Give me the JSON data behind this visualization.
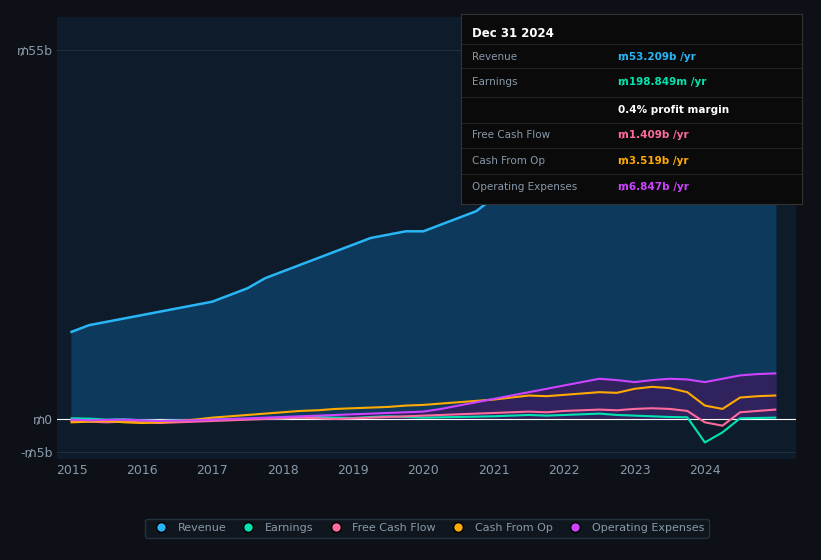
{
  "bg_color": "#0d1117",
  "plot_bg_color": "#0d1b2a",
  "grid_color": "#1e3040",
  "text_color": "#8899aa",
  "years": [
    2015.0,
    2015.25,
    2015.5,
    2015.75,
    2016.0,
    2016.25,
    2016.5,
    2016.75,
    2017.0,
    2017.25,
    2017.5,
    2017.75,
    2018.0,
    2018.25,
    2018.5,
    2018.75,
    2019.0,
    2019.25,
    2019.5,
    2019.75,
    2020.0,
    2020.25,
    2020.5,
    2020.75,
    2021.0,
    2021.25,
    2021.5,
    2021.75,
    2022.0,
    2022.25,
    2022.5,
    2022.75,
    2023.0,
    2023.25,
    2023.5,
    2023.75,
    2024.0,
    2024.25,
    2024.5,
    2024.75,
    2025.0
  ],
  "revenue": [
    13,
    14,
    14.5,
    15,
    15.5,
    16,
    16.5,
    17,
    17.5,
    18.5,
    19.5,
    21,
    22,
    23,
    24,
    25,
    26,
    27,
    27.5,
    28,
    28,
    29,
    30,
    31,
    33,
    34,
    36,
    37,
    39,
    40,
    41,
    42,
    47,
    49,
    51,
    52,
    53,
    53.5,
    53,
    52.5,
    53.2
  ],
  "earnings": [
    0.1,
    0.05,
    -0.1,
    -0.05,
    -0.2,
    -0.3,
    -0.2,
    -0.15,
    -0.1,
    -0.05,
    0.0,
    0.05,
    0.1,
    0.2,
    0.3,
    0.2,
    0.15,
    0.3,
    0.4,
    0.3,
    0.2,
    0.25,
    0.3,
    0.35,
    0.4,
    0.5,
    0.6,
    0.5,
    0.6,
    0.7,
    0.8,
    0.6,
    0.5,
    0.4,
    0.3,
    0.25,
    -3.5,
    -2.0,
    0.1,
    0.15,
    0.2
  ],
  "free_cash_flow": [
    -0.3,
    -0.4,
    -0.5,
    -0.4,
    -0.5,
    -0.6,
    -0.5,
    -0.4,
    -0.3,
    -0.2,
    -0.1,
    0.0,
    0.1,
    0.2,
    0.1,
    0.0,
    0.1,
    0.2,
    0.3,
    0.4,
    0.5,
    0.6,
    0.7,
    0.8,
    0.9,
    1.0,
    1.1,
    1.0,
    1.2,
    1.3,
    1.4,
    1.3,
    1.5,
    1.6,
    1.5,
    1.2,
    -0.5,
    -1.0,
    1.0,
    1.2,
    1.4
  ],
  "cash_from_op": [
    -0.5,
    -0.4,
    -0.3,
    -0.5,
    -0.6,
    -0.5,
    -0.3,
    -0.1,
    0.2,
    0.4,
    0.6,
    0.8,
    1.0,
    1.2,
    1.3,
    1.5,
    1.6,
    1.7,
    1.8,
    2.0,
    2.1,
    2.3,
    2.5,
    2.7,
    2.9,
    3.2,
    3.5,
    3.4,
    3.6,
    3.8,
    4.0,
    3.9,
    4.5,
    4.8,
    4.6,
    4.0,
    2.0,
    1.5,
    3.2,
    3.4,
    3.5
  ],
  "operating_expenses": [
    -0.1,
    -0.2,
    -0.15,
    -0.1,
    -0.2,
    -0.3,
    -0.25,
    -0.2,
    -0.1,
    0.0,
    0.1,
    0.2,
    0.3,
    0.4,
    0.5,
    0.6,
    0.7,
    0.8,
    0.9,
    1.0,
    1.1,
    1.5,
    2.0,
    2.5,
    3.0,
    3.5,
    4.0,
    4.5,
    5.0,
    5.5,
    6.0,
    5.8,
    5.5,
    5.8,
    6.0,
    5.9,
    5.5,
    6.0,
    6.5,
    6.7,
    6.8
  ],
  "revenue_color": "#29b6f6",
  "revenue_fill": "#0d3a5c",
  "earnings_color": "#00e5b0",
  "free_cash_flow_color": "#ff6b9d",
  "cash_from_op_color": "#ffaa00",
  "operating_expenses_color": "#cc44ff",
  "operating_expenses_fill": "#3d1a5c",
  "ylim_min": -6,
  "ylim_max": 60,
  "xlabel_ticks": [
    2015,
    2016,
    2017,
    2018,
    2019,
    2020,
    2021,
    2022,
    2023,
    2024
  ],
  "tooltip": {
    "date": "Dec 31 2024",
    "revenue_val": "₥53.209b",
    "earnings_val": "₥198.849m",
    "profit_margin": "0.4%",
    "fcf_val": "₥1.409b",
    "cash_op_val": "₥3.519b",
    "op_exp_val": "₥6.847b"
  },
  "legend_items": [
    "Revenue",
    "Earnings",
    "Free Cash Flow",
    "Cash From Op",
    "Operating Expenses"
  ],
  "legend_colors": [
    "#29b6f6",
    "#00e5b0",
    "#ff6b9d",
    "#ffaa00",
    "#cc44ff"
  ]
}
